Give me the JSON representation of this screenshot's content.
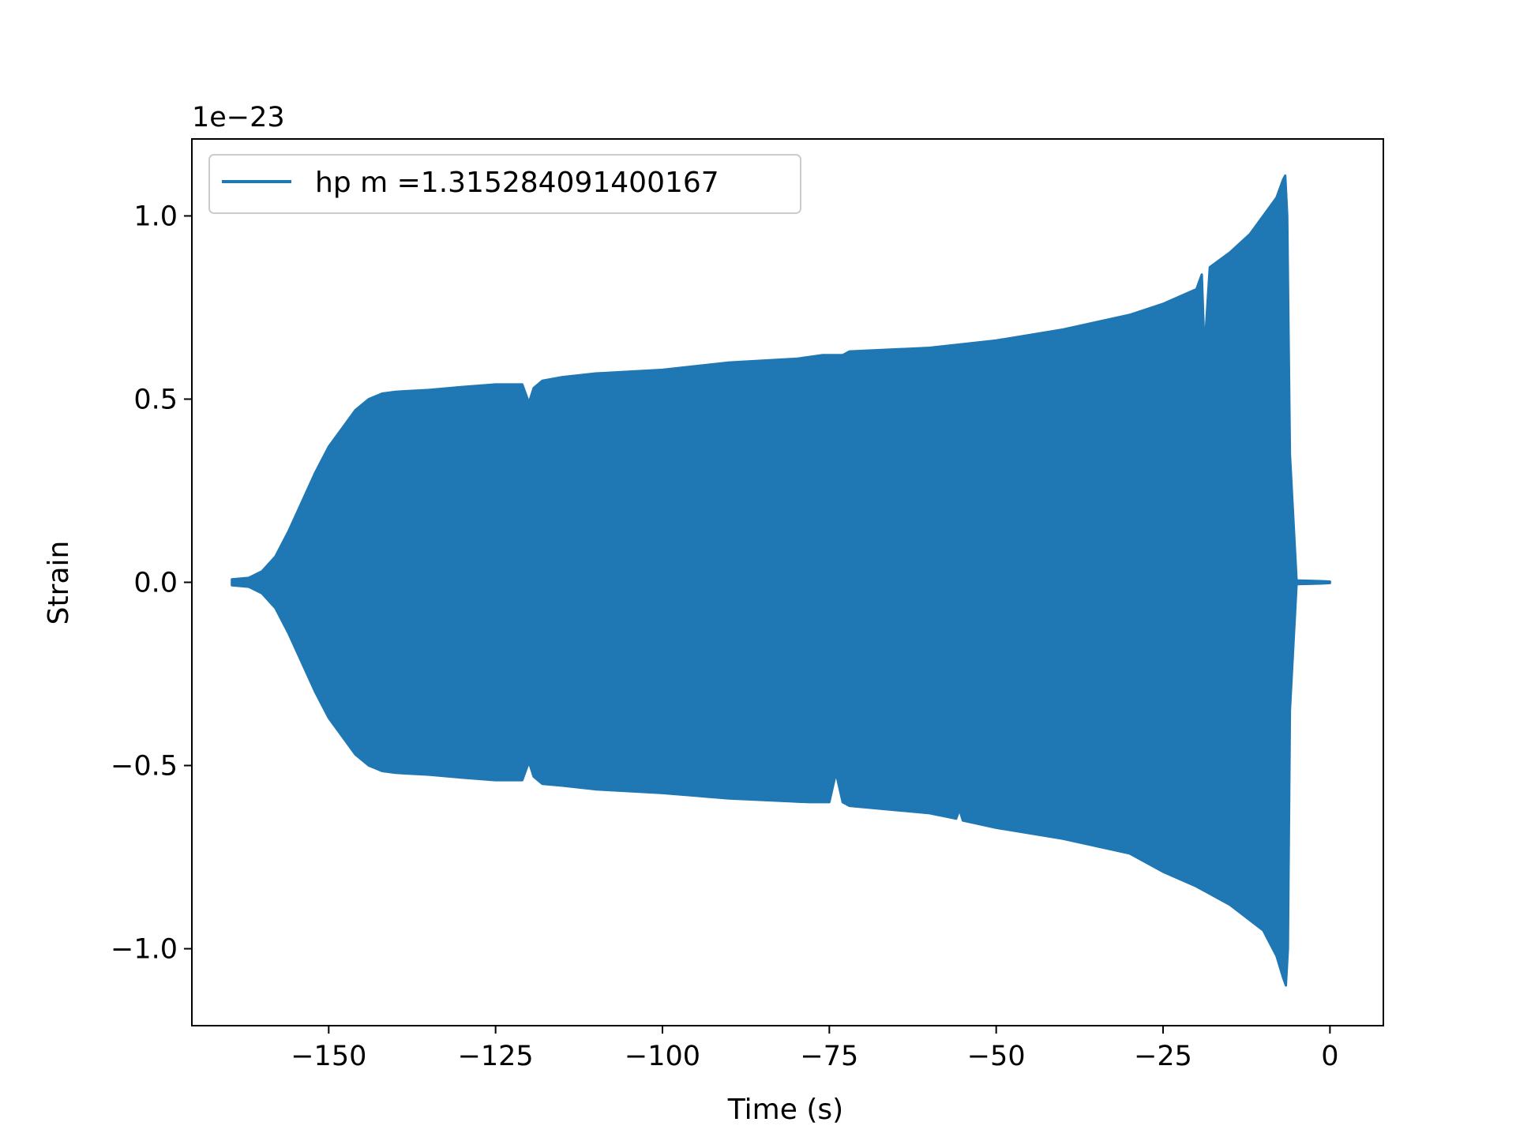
{
  "chart_data": {
    "type": "line",
    "title": "",
    "xlabel": "Time (s)",
    "ylabel": "Strain",
    "y_offset_label": "1e−23",
    "y_scale_factor": 1e-23,
    "xlim": [
      -170.5,
      8.0
    ],
    "ylim": [
      -1.21,
      1.21
    ],
    "x_ticks": [
      -150,
      -125,
      -100,
      -75,
      -50,
      -25,
      0
    ],
    "x_tick_labels": [
      "−150",
      "−125",
      "−100",
      "−75",
      "−50",
      "−25",
      "0"
    ],
    "y_ticks": [
      -1.0,
      -0.5,
      0.0,
      0.5,
      1.0
    ],
    "y_tick_labels": [
      "−1.0",
      "−0.5",
      "0.0",
      "0.5",
      "1.0"
    ],
    "grid": false,
    "legend_position": "upper-left",
    "series": [
      {
        "name": "hp m =1.315284091400167",
        "color": "#1f77b4",
        "style": "dense oscillation (filled envelope)",
        "upper_envelope": {
          "x": [
            -164.5,
            -162,
            -160,
            -158,
            -156,
            -154,
            -152,
            -150,
            -148,
            -146,
            -144,
            -142,
            -140,
            -135,
            -130,
            -125,
            -121,
            -120,
            -119.3,
            -118,
            -115,
            -110,
            -100,
            -90,
            -80,
            -76,
            -73,
            -72,
            -60,
            -50,
            -40,
            -30,
            -25,
            -20,
            -19.2,
            -18.8,
            -18,
            -15,
            -12,
            -10,
            -8,
            -7,
            -6.7,
            -6.4,
            -6,
            -5,
            -3,
            -1,
            0
          ],
          "y": [
            0.008,
            0.012,
            0.03,
            0.07,
            0.14,
            0.22,
            0.3,
            0.37,
            0.42,
            0.47,
            0.5,
            0.515,
            0.52,
            0.525,
            0.533,
            0.54,
            0.54,
            0.49,
            0.53,
            0.55,
            0.56,
            0.57,
            0.58,
            0.6,
            0.61,
            0.62,
            0.62,
            0.63,
            0.64,
            0.66,
            0.69,
            0.73,
            0.76,
            0.8,
            0.84,
            0.63,
            0.86,
            0.9,
            0.95,
            1.0,
            1.05,
            1.1,
            1.11,
            1.0,
            0.35,
            0.005,
            0.004,
            0.003,
            0.002
          ]
        },
        "lower_envelope": {
          "x": [
            -164.5,
            -162,
            -160,
            -158,
            -156,
            -154,
            -152,
            -150,
            -148,
            -146,
            -144,
            -142,
            -140,
            -135,
            -130,
            -125,
            -121,
            -120,
            -119.3,
            -118,
            -115,
            -110,
            -100,
            -90,
            -78,
            -75,
            -74,
            -73,
            -72,
            -60,
            -56,
            -55.5,
            -55,
            -50,
            -40,
            -30,
            -28,
            -25,
            -20,
            -15,
            -10,
            -8,
            -7,
            -6.6,
            -6.3,
            -6,
            -5,
            -3,
            -1,
            0
          ],
          "y": [
            -0.008,
            -0.012,
            -0.03,
            -0.07,
            -0.14,
            -0.22,
            -0.3,
            -0.37,
            -0.42,
            -0.47,
            -0.5,
            -0.515,
            -0.52,
            -0.525,
            -0.533,
            -0.54,
            -0.54,
            -0.49,
            -0.53,
            -0.55,
            -0.555,
            -0.565,
            -0.575,
            -0.59,
            -0.6,
            -0.6,
            -0.52,
            -0.6,
            -0.61,
            -0.63,
            -0.645,
            -0.62,
            -0.65,
            -0.67,
            -0.7,
            -0.74,
            -0.76,
            -0.79,
            -0.83,
            -0.88,
            -0.95,
            -1.02,
            -1.08,
            -1.1,
            -1.0,
            -0.35,
            -0.005,
            -0.004,
            -0.003,
            -0.002
          ]
        }
      }
    ]
  }
}
